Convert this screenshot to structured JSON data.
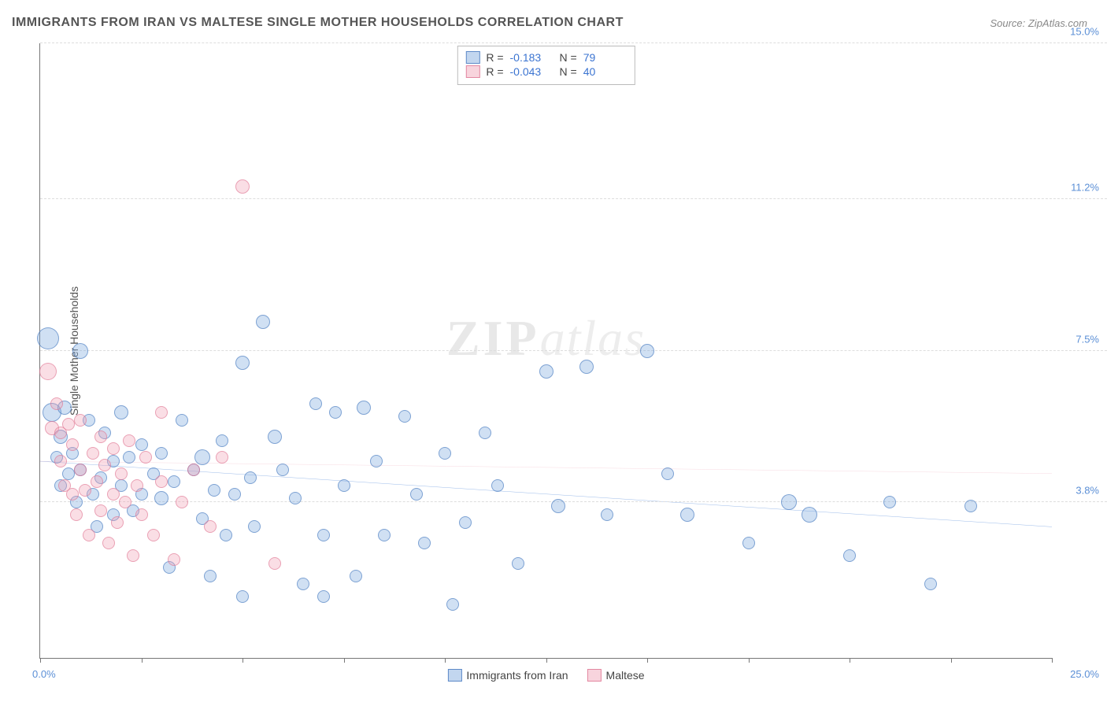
{
  "title": "IMMIGRANTS FROM IRAN VS MALTESE SINGLE MOTHER HOUSEHOLDS CORRELATION CHART",
  "source_prefix": "Source: ",
  "source": "ZipAtlas.com",
  "ylabel": "Single Mother Households",
  "watermark": {
    "zip": "ZIP",
    "atlas": "atlas"
  },
  "chart": {
    "type": "scatter",
    "xlim": [
      0,
      25
    ],
    "ylim": [
      0,
      15
    ],
    "x_min_label": "0.0%",
    "x_max_label": "25.0%",
    "y_ticks": [
      {
        "v": 3.8,
        "label": "3.8%"
      },
      {
        "v": 7.5,
        "label": "7.5%"
      },
      {
        "v": 11.2,
        "label": "11.2%"
      },
      {
        "v": 15.0,
        "label": "15.0%"
      }
    ],
    "x_tick_positions": [
      0,
      2.5,
      5,
      7.5,
      10,
      12.5,
      15,
      17.5,
      20,
      22.5,
      25
    ],
    "background_color": "#ffffff",
    "grid_color": "#dddddd",
    "axis_color": "#777777",
    "series": [
      {
        "name": "Immigrants from Iran",
        "color": "#78a5dc",
        "border": "#4678be",
        "fill_opacity": 0.35,
        "R": -0.183,
        "N": 79,
        "trend": {
          "y_at_x0": 4.8,
          "y_at_xmax": 3.2,
          "color": "#2f6fd0",
          "width": 2
        },
        "points": [
          {
            "x": 0.2,
            "y": 7.8,
            "r": 14
          },
          {
            "x": 0.3,
            "y": 6.0,
            "r": 12
          },
          {
            "x": 0.4,
            "y": 4.9,
            "r": 8
          },
          {
            "x": 0.5,
            "y": 5.4,
            "r": 9
          },
          {
            "x": 0.5,
            "y": 4.2,
            "r": 8
          },
          {
            "x": 0.6,
            "y": 6.1,
            "r": 9
          },
          {
            "x": 0.7,
            "y": 4.5,
            "r": 8
          },
          {
            "x": 0.8,
            "y": 5.0,
            "r": 8
          },
          {
            "x": 0.9,
            "y": 3.8,
            "r": 8
          },
          {
            "x": 1.0,
            "y": 7.5,
            "r": 10
          },
          {
            "x": 1.0,
            "y": 4.6,
            "r": 8
          },
          {
            "x": 1.2,
            "y": 5.8,
            "r": 8
          },
          {
            "x": 1.3,
            "y": 4.0,
            "r": 8
          },
          {
            "x": 1.4,
            "y": 3.2,
            "r": 8
          },
          {
            "x": 1.5,
            "y": 4.4,
            "r": 8
          },
          {
            "x": 1.6,
            "y": 5.5,
            "r": 8
          },
          {
            "x": 1.8,
            "y": 4.8,
            "r": 8
          },
          {
            "x": 1.8,
            "y": 3.5,
            "r": 8
          },
          {
            "x": 2.0,
            "y": 6.0,
            "r": 9
          },
          {
            "x": 2.0,
            "y": 4.2,
            "r": 8
          },
          {
            "x": 2.2,
            "y": 4.9,
            "r": 8
          },
          {
            "x": 2.3,
            "y": 3.6,
            "r": 8
          },
          {
            "x": 2.5,
            "y": 5.2,
            "r": 8
          },
          {
            "x": 2.5,
            "y": 4.0,
            "r": 8
          },
          {
            "x": 2.8,
            "y": 4.5,
            "r": 8
          },
          {
            "x": 3.0,
            "y": 3.9,
            "r": 9
          },
          {
            "x": 3.0,
            "y": 5.0,
            "r": 8
          },
          {
            "x": 3.2,
            "y": 2.2,
            "r": 8
          },
          {
            "x": 3.3,
            "y": 4.3,
            "r": 8
          },
          {
            "x": 3.5,
            "y": 5.8,
            "r": 8
          },
          {
            "x": 3.8,
            "y": 4.6,
            "r": 8
          },
          {
            "x": 4.0,
            "y": 3.4,
            "r": 8
          },
          {
            "x": 4.0,
            "y": 4.9,
            "r": 10
          },
          {
            "x": 4.2,
            "y": 2.0,
            "r": 8
          },
          {
            "x": 4.3,
            "y": 4.1,
            "r": 8
          },
          {
            "x": 4.5,
            "y": 5.3,
            "r": 8
          },
          {
            "x": 4.6,
            "y": 3.0,
            "r": 8
          },
          {
            "x": 4.8,
            "y": 4.0,
            "r": 8
          },
          {
            "x": 5.0,
            "y": 7.2,
            "r": 9
          },
          {
            "x": 5.0,
            "y": 1.5,
            "r": 8
          },
          {
            "x": 5.2,
            "y": 4.4,
            "r": 8
          },
          {
            "x": 5.3,
            "y": 3.2,
            "r": 8
          },
          {
            "x": 5.5,
            "y": 8.2,
            "r": 9
          },
          {
            "x": 5.8,
            "y": 5.4,
            "r": 9
          },
          {
            "x": 6.0,
            "y": 4.6,
            "r": 8
          },
          {
            "x": 6.3,
            "y": 3.9,
            "r": 8
          },
          {
            "x": 6.5,
            "y": 1.8,
            "r": 8
          },
          {
            "x": 6.8,
            "y": 6.2,
            "r": 8
          },
          {
            "x": 7.0,
            "y": 3.0,
            "r": 8
          },
          {
            "x": 7.0,
            "y": 1.5,
            "r": 8
          },
          {
            "x": 7.3,
            "y": 6.0,
            "r": 8
          },
          {
            "x": 7.5,
            "y": 4.2,
            "r": 8
          },
          {
            "x": 7.8,
            "y": 2.0,
            "r": 8
          },
          {
            "x": 8.0,
            "y": 6.1,
            "r": 9
          },
          {
            "x": 8.3,
            "y": 4.8,
            "r": 8
          },
          {
            "x": 8.5,
            "y": 3.0,
            "r": 8
          },
          {
            "x": 9.0,
            "y": 5.9,
            "r": 8
          },
          {
            "x": 9.3,
            "y": 4.0,
            "r": 8
          },
          {
            "x": 9.5,
            "y": 2.8,
            "r": 8
          },
          {
            "x": 10.0,
            "y": 5.0,
            "r": 8
          },
          {
            "x": 10.2,
            "y": 1.3,
            "r": 8
          },
          {
            "x": 10.5,
            "y": 3.3,
            "r": 8
          },
          {
            "x": 11.0,
            "y": 5.5,
            "r": 8
          },
          {
            "x": 11.3,
            "y": 4.2,
            "r": 8
          },
          {
            "x": 11.8,
            "y": 2.3,
            "r": 8
          },
          {
            "x": 12.5,
            "y": 7.0,
            "r": 9
          },
          {
            "x": 12.8,
            "y": 3.7,
            "r": 9
          },
          {
            "x": 13.5,
            "y": 7.1,
            "r": 9
          },
          {
            "x": 14.0,
            "y": 3.5,
            "r": 8
          },
          {
            "x": 15.0,
            "y": 7.5,
            "r": 9
          },
          {
            "x": 15.5,
            "y": 4.5,
            "r": 8
          },
          {
            "x": 16.0,
            "y": 3.5,
            "r": 9
          },
          {
            "x": 17.5,
            "y": 2.8,
            "r": 8
          },
          {
            "x": 18.5,
            "y": 3.8,
            "r": 10
          },
          {
            "x": 19.0,
            "y": 3.5,
            "r": 10
          },
          {
            "x": 20.0,
            "y": 2.5,
            "r": 8
          },
          {
            "x": 21.0,
            "y": 3.8,
            "r": 8
          },
          {
            "x": 22.0,
            "y": 1.8,
            "r": 8
          },
          {
            "x": 23.0,
            "y": 3.7,
            "r": 8
          }
        ]
      },
      {
        "name": "Maltese",
        "color": "#f0a0b4",
        "border": "#dc6e8c",
        "fill_opacity": 0.35,
        "R": -0.043,
        "N": 40,
        "trend": {
          "y_at_x0": 4.8,
          "y_at_xmax": 4.5,
          "color": "#e896aa",
          "width": 1.5
        },
        "points": [
          {
            "x": 0.2,
            "y": 7.0,
            "r": 11
          },
          {
            "x": 0.3,
            "y": 5.6,
            "r": 9
          },
          {
            "x": 0.4,
            "y": 6.2,
            "r": 8
          },
          {
            "x": 0.5,
            "y": 4.8,
            "r": 8
          },
          {
            "x": 0.5,
            "y": 5.5,
            "r": 8
          },
          {
            "x": 0.6,
            "y": 4.2,
            "r": 8
          },
          {
            "x": 0.7,
            "y": 5.7,
            "r": 8
          },
          {
            "x": 0.8,
            "y": 4.0,
            "r": 8
          },
          {
            "x": 0.8,
            "y": 5.2,
            "r": 8
          },
          {
            "x": 0.9,
            "y": 3.5,
            "r": 8
          },
          {
            "x": 1.0,
            "y": 4.6,
            "r": 8
          },
          {
            "x": 1.0,
            "y": 5.8,
            "r": 8
          },
          {
            "x": 1.1,
            "y": 4.1,
            "r": 8
          },
          {
            "x": 1.2,
            "y": 3.0,
            "r": 8
          },
          {
            "x": 1.3,
            "y": 5.0,
            "r": 8
          },
          {
            "x": 1.4,
            "y": 4.3,
            "r": 8
          },
          {
            "x": 1.5,
            "y": 3.6,
            "r": 8
          },
          {
            "x": 1.5,
            "y": 5.4,
            "r": 8
          },
          {
            "x": 1.6,
            "y": 4.7,
            "r": 8
          },
          {
            "x": 1.7,
            "y": 2.8,
            "r": 8
          },
          {
            "x": 1.8,
            "y": 4.0,
            "r": 8
          },
          {
            "x": 1.8,
            "y": 5.1,
            "r": 8
          },
          {
            "x": 1.9,
            "y": 3.3,
            "r": 8
          },
          {
            "x": 2.0,
            "y": 4.5,
            "r": 8
          },
          {
            "x": 2.1,
            "y": 3.8,
            "r": 8
          },
          {
            "x": 2.2,
            "y": 5.3,
            "r": 8
          },
          {
            "x": 2.3,
            "y": 2.5,
            "r": 8
          },
          {
            "x": 2.4,
            "y": 4.2,
            "r": 8
          },
          {
            "x": 2.5,
            "y": 3.5,
            "r": 8
          },
          {
            "x": 2.6,
            "y": 4.9,
            "r": 8
          },
          {
            "x": 2.8,
            "y": 3.0,
            "r": 8
          },
          {
            "x": 3.0,
            "y": 4.3,
            "r": 8
          },
          {
            "x": 3.0,
            "y": 6.0,
            "r": 8
          },
          {
            "x": 3.3,
            "y": 2.4,
            "r": 8
          },
          {
            "x": 3.5,
            "y": 3.8,
            "r": 8
          },
          {
            "x": 3.8,
            "y": 4.6,
            "r": 8
          },
          {
            "x": 4.2,
            "y": 3.2,
            "r": 8
          },
          {
            "x": 4.5,
            "y": 4.9,
            "r": 8
          },
          {
            "x": 5.0,
            "y": 11.5,
            "r": 9
          },
          {
            "x": 5.8,
            "y": 2.3,
            "r": 8
          }
        ]
      }
    ],
    "stats_labels": {
      "R": "R =",
      "N": "N ="
    },
    "bottom_legend": [
      {
        "series": 0,
        "label": "Immigrants from Iran"
      },
      {
        "series": 1,
        "label": "Maltese"
      }
    ]
  }
}
